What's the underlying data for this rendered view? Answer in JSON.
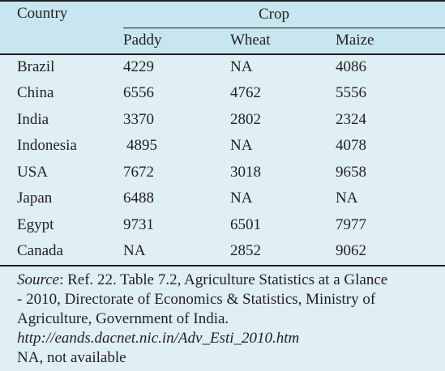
{
  "table": {
    "header": {
      "country_label": "Country",
      "group_label": "Crop",
      "columns": [
        "Paddy",
        "Wheat",
        "Maize"
      ]
    },
    "rows": [
      {
        "country": "Brazil",
        "values": [
          "4229",
          "NA",
          "4086"
        ]
      },
      {
        "country": "China",
        "values": [
          "6556",
          "4762",
          "5556"
        ]
      },
      {
        "country": "India",
        "values": [
          "3370",
          "2802",
          "2324"
        ]
      },
      {
        "country": "Indonesia",
        "values": [
          "4895",
          "NA",
          "4078"
        ]
      },
      {
        "country": "USA",
        "values": [
          "7672",
          "3018",
          "9658"
        ]
      },
      {
        "country": "Japan",
        "values": [
          "6488",
          "NA",
          "NA"
        ]
      },
      {
        "country": "Egypt",
        "values": [
          "9731",
          "6501",
          "7977"
        ]
      },
      {
        "country": "Canada",
        "values": [
          "NA",
          "2852",
          "9062"
        ]
      }
    ]
  },
  "footnote": {
    "source_label": "Source",
    "source_line1": ": Ref. 22. Table 7.2, Agriculture Statistics at a Glance",
    "source_line2": "- 2010, Directorate of Economics & Statistics, Ministry of",
    "source_line3": "Agriculture, Government of India.",
    "url": "http://eands.dacnet.nic.in/Adv_Esti_2010.htm",
    "na_note": "NA, not available"
  }
}
